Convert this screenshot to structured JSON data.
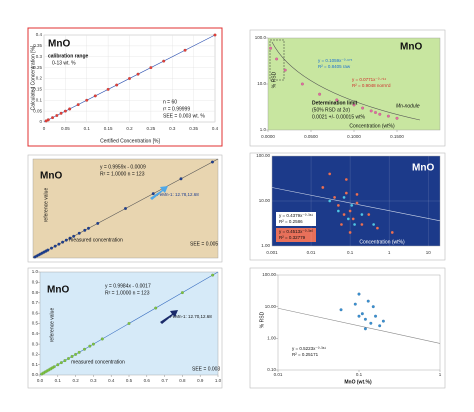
{
  "chart_data": [
    {
      "type": "scatter",
      "title": "MnO",
      "annotations": [
        "calibration range",
        "0-13 wt. %",
        "n = 60",
        "r² = 0.99999",
        "SEE = 0.003 wt. %"
      ],
      "xlabel": "Certified Concentration [%]",
      "ylabel": "Calculated Concentration [%]",
      "x": [
        0.005,
        0.01,
        0.02,
        0.03,
        0.04,
        0.05,
        0.06,
        0.08,
        0.1,
        0.12,
        0.15,
        0.17,
        0.2,
        0.22,
        0.25,
        0.28,
        0.33,
        0.4
      ],
      "y": [
        0.005,
        0.01,
        0.02,
        0.03,
        0.04,
        0.05,
        0.06,
        0.08,
        0.1,
        0.12,
        0.15,
        0.17,
        0.2,
        0.22,
        0.25,
        0.28,
        0.33,
        0.4
      ],
      "color": "#e0403a",
      "background": "#ffffff",
      "grid": true,
      "xlim": [
        0,
        0.4
      ],
      "ylim": [
        0,
        0.4
      ],
      "xticks": [
        0,
        0.05,
        0.1,
        0.15,
        0.2,
        0.25,
        0.3,
        0.35,
        0.4
      ],
      "yticks": [
        0,
        0.05,
        0.1,
        0.15,
        0.2,
        0.25,
        0.3,
        0.35,
        0.4
      ]
    },
    {
      "type": "scatter",
      "title": "MnO",
      "annotations": [
        "y = 0.1059x⁻⁰·⁶⁷⁵",
        "R² = 0.8405 raw",
        "y = 0.0771x⁻⁰·⁷¹⁴",
        "R² = 0.9048 norm'd",
        "Determination limit",
        "(50% RSD at 2σ)",
        "0.0021 +/- 0.00015 wt%",
        "Mn-nodule"
      ],
      "xlabel": "Concentration (wt%)",
      "ylabel": "% RSD",
      "x": [
        0.003,
        0.01,
        0.02,
        0.04,
        0.06,
        0.08,
        0.1,
        0.11,
        0.12,
        0.125,
        0.13,
        0.14,
        0.15
      ],
      "y": [
        60,
        35,
        20,
        10,
        6,
        4.5,
        3.5,
        3,
        2.6,
        2.4,
        2.2,
        2,
        1.8
      ],
      "color": "#e06aa0",
      "background": "#c8e6a0",
      "grid": false,
      "xlim": [
        0,
        0.2
      ],
      "ylim": [
        1,
        100
      ],
      "ylog": true,
      "xticks": [
        {
          "value": 0,
          "label": "0.0000"
        },
        {
          "value": 0.05,
          "label": "0.0500"
        },
        {
          "value": 0.1,
          "label": "0.1000"
        },
        {
          "value": 0.15,
          "label": "0.1500"
        }
      ],
      "yticks": [
        {
          "value": 100,
          "label": "100.0"
        },
        {
          "value": 10,
          "label": "10.0"
        },
        {
          "value": 1,
          "label": "1.0"
        }
      ]
    },
    {
      "type": "scatter",
      "title": "MnO",
      "annotations": [
        "y = 0.9959x - 0.0009",
        "R² = 1.0000  n = 123",
        "FeMn-1: 12.78,12.68",
        "SEE = 0.005"
      ],
      "xlabel": "measured concentration",
      "ylabel": "reference value",
      "x": [
        0.01,
        0.02,
        0.03,
        0.04,
        0.05,
        0.06,
        0.07,
        0.08,
        0.1,
        0.12,
        0.14,
        0.16,
        0.18,
        0.2,
        0.22,
        0.25,
        0.28,
        0.3,
        0.35,
        0.5,
        0.65,
        0.8,
        0.97
      ],
      "y": [
        0.01,
        0.02,
        0.03,
        0.04,
        0.05,
        0.06,
        0.07,
        0.08,
        0.1,
        0.12,
        0.14,
        0.16,
        0.18,
        0.2,
        0.22,
        0.25,
        0.28,
        0.3,
        0.35,
        0.5,
        0.65,
        0.8,
        0.97
      ],
      "color": "#1f3f8f",
      "background": "#e8d5b0",
      "grid": false,
      "xlim": [
        0,
        1
      ],
      "ylim": [
        0,
        1
      ]
    },
    {
      "type": "scatter",
      "title": "MnO",
      "annotations": [
        "y = 0.4379x⁻⁰·³⁶¹",
        "R² = 0.2586",
        "y = 0.4513x⁻⁰·³⁶⁰",
        "R² = 0.32779"
      ],
      "xlabel": "Concentration (wt%)",
      "series": [
        {
          "color": "#e8705a",
          "x": [
            0.02,
            0.04,
            0.05,
            0.07,
            0.08,
            0.1,
            0.12,
            0.15,
            0.2,
            0.3,
            0.5,
            0.08,
            0.1,
            0.06,
            0.15,
            1.2,
            0.03
          ],
          "y": [
            20,
            12,
            8,
            5,
            15,
            6,
            4,
            9,
            3,
            5,
            2.5,
            30,
            2,
            3,
            14,
            2,
            40
          ]
        },
        {
          "color": "#4fc3e8",
          "x": [
            0.03,
            0.05,
            0.09,
            0.11,
            0.2,
            0.13,
            0.07,
            0.4
          ],
          "y": [
            10,
            6,
            4,
            8,
            5,
            3,
            12,
            3
          ]
        }
      ],
      "background": "#1c3a8a",
      "grid": true,
      "xlim": [
        0.001,
        20
      ],
      "ylim": [
        1,
        100
      ],
      "xlog": true,
      "ylog": true,
      "xticks": [
        0.001,
        0.01,
        0.1,
        1,
        10
      ],
      "yticks": [
        {
          "value": 100,
          "label": "100.00"
        },
        {
          "value": 10,
          "label": "10.00"
        },
        {
          "value": 1,
          "label": "1.00"
        }
      ]
    },
    {
      "type": "scatter",
      "title": "MnO",
      "annotations": [
        "y = 0.9984x - 0.0017",
        "R² = 1.0000  n = 123",
        "FeMn-1: 12.70,12.68",
        "SEE = 0.003"
      ],
      "xlabel": "measured concentration",
      "ylabel": "reference value",
      "x": [
        0.01,
        0.02,
        0.03,
        0.04,
        0.05,
        0.06,
        0.07,
        0.08,
        0.1,
        0.12,
        0.14,
        0.16,
        0.18,
        0.2,
        0.22,
        0.25,
        0.28,
        0.3,
        0.35,
        0.5,
        0.65,
        0.8,
        0.97
      ],
      "y": [
        0.01,
        0.02,
        0.03,
        0.04,
        0.05,
        0.06,
        0.07,
        0.08,
        0.1,
        0.12,
        0.14,
        0.16,
        0.18,
        0.2,
        0.22,
        0.25,
        0.28,
        0.3,
        0.35,
        0.5,
        0.65,
        0.8,
        0.97
      ],
      "color": "#7cc242",
      "background": "#d6eaf8",
      "grid": false,
      "xlim": [
        0,
        1
      ],
      "ylim": [
        0,
        1
      ],
      "xticks": [
        {
          "value": 0,
          "label": "0.0"
        },
        0.1,
        0.2,
        0.3,
        0.4,
        0.5,
        0.6,
        0.7,
        0.8,
        0.9,
        {
          "value": 1,
          "label": "1.0"
        }
      ],
      "yticks": [
        {
          "value": 0,
          "label": "0.0"
        },
        0.1,
        0.2,
        0.3,
        0.4,
        0.5,
        0.6,
        0.7,
        0.8,
        0.9,
        {
          "value": 1,
          "label": "1.0"
        }
      ]
    },
    {
      "type": "scatter",
      "annotations": [
        "y = 0.5223x⁻⁰·³⁶¹",
        "R² = 0.25171"
      ],
      "xlabel": "MnO (wt.%)",
      "ylabel": "% RSD",
      "x": [
        0.06,
        0.09,
        0.1,
        0.11,
        0.12,
        0.13,
        0.14,
        0.15,
        0.16,
        0.18,
        0.2,
        0.12,
        0.1
      ],
      "y": [
        8,
        12,
        25,
        6,
        4,
        15,
        3,
        10,
        5,
        2.5,
        3.5,
        2,
        5
      ],
      "color": "#3a8fd0",
      "background": "#ffffff",
      "grid": false,
      "xlim": [
        0.01,
        1
      ],
      "ylim": [
        0.1,
        100
      ],
      "xlog": true,
      "ylog": true,
      "xticks": [
        0.01,
        0.1,
        1
      ],
      "yticks": [
        {
          "value": 100,
          "label": "100.00"
        },
        {
          "value": 10,
          "label": "10.00"
        },
        {
          "value": 1,
          "label": "1.00"
        },
        {
          "value": 0.1,
          "label": "0.10"
        }
      ]
    }
  ]
}
